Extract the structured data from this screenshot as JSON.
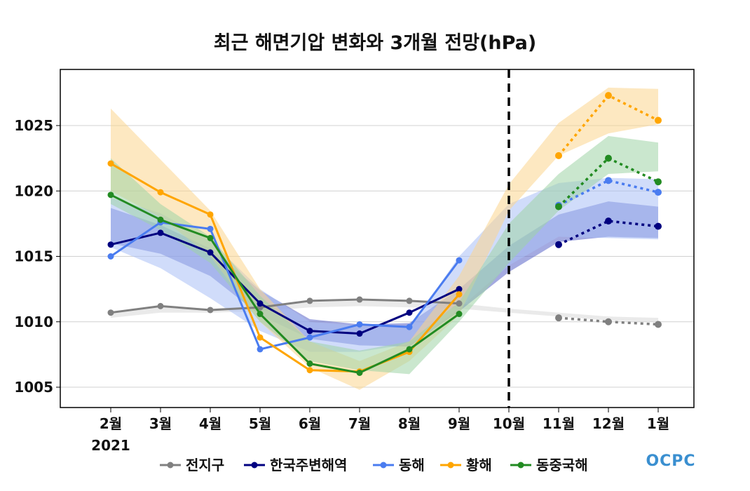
{
  "chart_data": {
    "type": "line",
    "title": "최근 해면기압 변화와 3개월 전망(hPa)",
    "categories": [
      "2월",
      "3월",
      "4월",
      "5월",
      "6월",
      "7월",
      "8월",
      "9월",
      "10월",
      "11월",
      "12월",
      "1월"
    ],
    "year_label": "2021",
    "ylim": [
      1003.5,
      1029.3
    ],
    "yticks": [
      1005,
      1010,
      1015,
      1020,
      1025
    ],
    "grid": "horizontal",
    "divider_at": "10월",
    "legend_position": "bottom",
    "logo_text": "OCPC",
    "series": [
      {
        "name": "전지구",
        "color": "#808080",
        "band_color": "#d9d9d9",
        "observed": [
          1010.7,
          1011.2,
          1010.9,
          1011.1,
          1011.6,
          1011.7,
          1011.6,
          1011.4
        ],
        "forecast": [
          1010.3,
          1010.0,
          1009.8
        ],
        "band_upper": [
          1010.8,
          1011.2,
          1011.0,
          1011.2,
          1011.5,
          1011.6,
          1011.6,
          1011.4,
          1011.0,
          1010.7,
          1010.4,
          1010.3
        ],
        "band_lower": [
          1010.3,
          1010.7,
          1010.7,
          1010.8,
          1011.1,
          1011.2,
          1011.1,
          1011.0,
          1010.7,
          1010.4,
          1010.1,
          1010.0
        ]
      },
      {
        "name": "한국주변해역",
        "color": "#000080",
        "band_color": "#5a64c8",
        "observed": [
          1015.9,
          1016.8,
          1015.3,
          1011.4,
          1009.3,
          1009.1,
          1010.7,
          1012.5
        ],
        "forecast": [
          1015.9,
          1017.7,
          1017.3
        ],
        "band_upper": [
          1018.7,
          1017.4,
          1015.6,
          1012.4,
          1010.2,
          1009.8,
          1009.9,
          1012.5,
          1015.8,
          1018.2,
          1019.2,
          1018.8
        ],
        "band_lower": [
          1016.0,
          1015.2,
          1013.5,
          1010.5,
          1008.7,
          1008.2,
          1008.1,
          1010.8,
          1013.8,
          1016.1,
          1016.5,
          1016.4
        ]
      },
      {
        "name": "동해",
        "color": "#4a7cf0",
        "band_color": "#a9bff5",
        "observed": [
          1015.0,
          1017.6,
          1017.1,
          1007.9,
          1008.8,
          1009.8,
          1009.6,
          1014.7
        ],
        "forecast": [
          1018.9,
          1020.8,
          1019.9
        ],
        "band_upper": [
          1019.5,
          1018.3,
          1016.2,
          1012.5,
          1010.0,
          1009.7,
          1009.5,
          1015.0,
          1019.0,
          1020.6,
          1021.0,
          1020.9
        ],
        "band_lower": [
          1015.7,
          1014.1,
          1011.8,
          1009.3,
          1007.7,
          1007.7,
          1008.3,
          1011.0,
          1014.3,
          1016.5,
          1016.4,
          1016.3
        ]
      },
      {
        "name": "황해",
        "color": "#ffa500",
        "band_color": "#fcd58e",
        "observed": [
          1022.1,
          1019.9,
          1018.2,
          1008.8,
          1006.3,
          1006.2,
          1007.7,
          1012.1
        ],
        "forecast": [
          1022.7,
          1027.3,
          1025.4
        ],
        "band_upper": [
          1026.3,
          1022.4,
          1018.5,
          1012.5,
          1008.5,
          1007.0,
          1008.5,
          1013.5,
          1020.5,
          1025.2,
          1027.9,
          1027.8
        ],
        "band_lower": [
          1020.0,
          1018.0,
          1015.0,
          1010.0,
          1006.5,
          1004.8,
          1007.0,
          1010.5,
          1018.5,
          1022.7,
          1024.4,
          1025.1
        ]
      },
      {
        "name": "동중국해",
        "color": "#228b22",
        "band_color": "#9fd3a6",
        "observed": [
          1019.7,
          1017.8,
          1016.4,
          1010.6,
          1006.8,
          1006.1,
          1007.9,
          1010.6
        ],
        "forecast": [
          1018.8,
          1022.5,
          1020.7
        ],
        "band_upper": [
          1022.5,
          1019.0,
          1016.5,
          1012.0,
          1008.5,
          1007.8,
          1008.5,
          1011.5,
          1017.5,
          1021.3,
          1024.2,
          1023.7
        ],
        "band_lower": [
          1019.0,
          1017.0,
          1014.5,
          1010.0,
          1007.0,
          1006.3,
          1006.0,
          1010.0,
          1014.5,
          1018.5,
          1021.3,
          1021.5
        ]
      }
    ]
  }
}
